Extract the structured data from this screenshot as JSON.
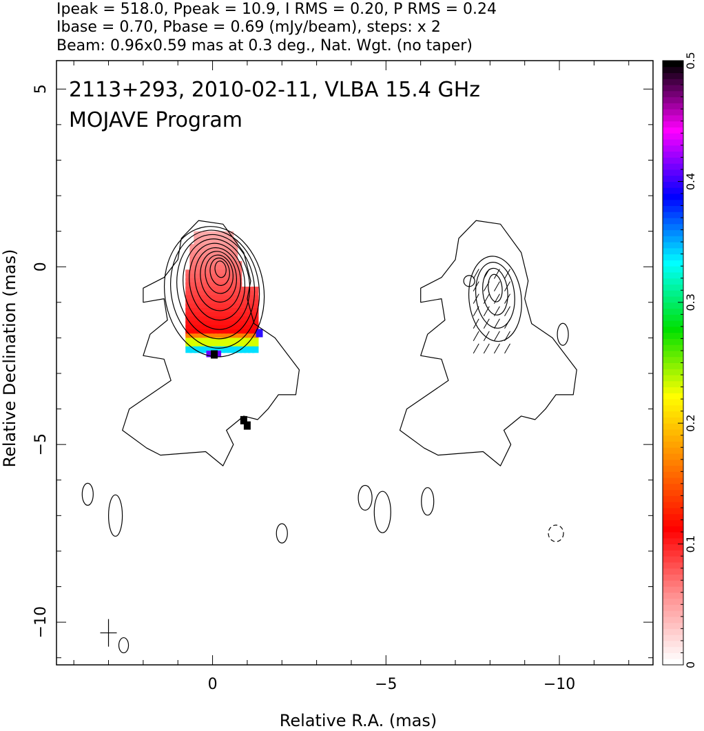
{
  "header": {
    "line1": "Ipeak = 518.0, Ppeak = 10.9, I RMS = 0.20, P RMS = 0.24",
    "line2": "Ibase = 0.70, Pbase = 0.69 (mJy/beam), steps: x 2",
    "line3": "Beam: 0.96x0.59 mas at 0.3 deg., Nat. Wgt. (no taper)"
  },
  "chart_data": {
    "type": "heatmap",
    "annotation_line1": "2113+293, 2010-02-11, VLBA 15.4 GHz",
    "annotation_line2": "MOJAVE Program",
    "xlabel": "Relative R.A. (mas)",
    "ylabel": "Relative Declination (mas)",
    "xlim": [
      4.5,
      -12.7
    ],
    "ylim": [
      -11.2,
      5.8
    ],
    "x_ticks": [
      0,
      -5,
      -10
    ],
    "x_tick_labels": [
      "0",
      "−5",
      "−10"
    ],
    "y_ticks": [
      5,
      0,
      -5,
      -10
    ],
    "y_tick_labels": [
      "5",
      "0",
      "−5",
      "−10"
    ],
    "colorbar": {
      "range": [
        0,
        0.5
      ],
      "ticks": [
        0,
        0.1,
        0.2,
        0.3,
        0.4,
        0.5
      ],
      "tick_labels": [
        "0",
        "0.1",
        "0.2",
        "0.3",
        "0.4",
        "0.5"
      ],
      "colors": [
        "#ffffff",
        "#ff9090",
        "#ff0000",
        "#ff8000",
        "#ffff00",
        "#00e000",
        "#00ffff",
        "#0000ff",
        "#ff00ff",
        "#000000"
      ]
    },
    "panels": [
      {
        "name": "left",
        "x_offset": 0,
        "core": {
          "x": 0.0,
          "y": 0.0
        },
        "contour_levels_mJy": [
          0.7,
          1.4,
          2.8,
          5.6,
          11.2,
          22.4,
          44.8,
          89.6,
          179.2,
          358.4
        ],
        "polarization_map": "fractional polarization color overlay"
      },
      {
        "name": "right",
        "x_offset": -8.0,
        "core": {
          "x": -8.0,
          "y": 0.0
        },
        "contour_levels_mJy": [
          0.69,
          1.38,
          2.76,
          5.52
        ],
        "vectors": "EVPA sticks"
      }
    ],
    "beam": {
      "major_mas": 0.96,
      "minor_mas": 0.59,
      "pa_deg": 0.3,
      "x": 3.0,
      "y": -10.3
    }
  }
}
